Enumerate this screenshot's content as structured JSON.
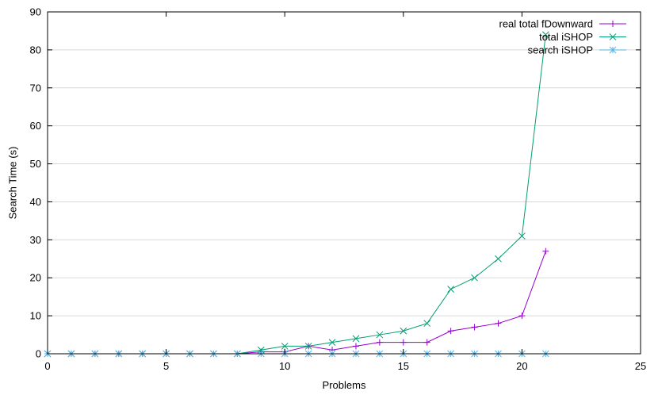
{
  "chart_data": {
    "type": "line",
    "title": "",
    "xlabel": "Problems",
    "ylabel": "Search Time (s)",
    "xlim": [
      0,
      25
    ],
    "ylim": [
      0,
      90
    ],
    "xticks": [
      0,
      5,
      10,
      15,
      20,
      25
    ],
    "yticks": [
      0,
      10,
      20,
      30,
      40,
      50,
      60,
      70,
      80,
      90
    ],
    "grid": "horizontal",
    "legend": "top-right",
    "series": [
      {
        "name": "real total fDownward",
        "color": "#9400d3",
        "marker": "plus",
        "x": [
          0,
          1,
          2,
          3,
          4,
          5,
          6,
          7,
          8,
          9,
          10,
          11,
          12,
          13,
          14,
          15,
          16,
          17,
          18,
          19,
          20,
          21
        ],
        "values": [
          0,
          0,
          0,
          0,
          0,
          0,
          0,
          0,
          0,
          0.5,
          0.5,
          2,
          1,
          2,
          3,
          3,
          3,
          6,
          7,
          8,
          10,
          27
        ]
      },
      {
        "name": "total iSHOP",
        "color": "#009e73",
        "marker": "cross",
        "x": [
          0,
          1,
          2,
          3,
          4,
          5,
          6,
          7,
          8,
          9,
          10,
          11,
          12,
          13,
          14,
          15,
          16,
          17,
          18,
          19,
          20,
          21
        ],
        "values": [
          0,
          0,
          0,
          0,
          0,
          0,
          0,
          0,
          0,
          1,
          2,
          2,
          3,
          4,
          5,
          6,
          8,
          17,
          20,
          25,
          31,
          84
        ]
      },
      {
        "name": "search iSHOP",
        "color": "#56b4e9",
        "marker": "star",
        "x": [
          0,
          1,
          2,
          3,
          4,
          5,
          6,
          7,
          8,
          9,
          10,
          11,
          12,
          13,
          14,
          15,
          16,
          17,
          18,
          19,
          20,
          21
        ],
        "values": [
          0,
          0,
          0,
          0,
          0,
          0,
          0,
          0,
          0,
          0,
          0,
          0,
          0,
          0,
          0,
          0,
          0,
          0,
          0,
          0,
          0,
          0
        ]
      }
    ]
  }
}
